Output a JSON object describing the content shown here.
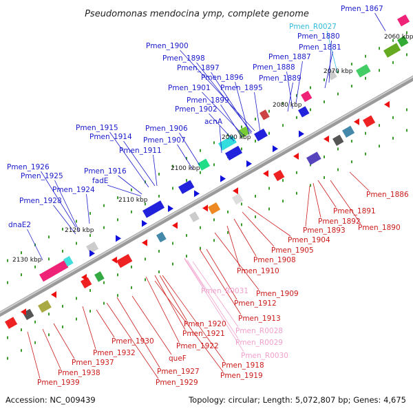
{
  "title": "Pseudomonas mendocina ymp, complete genome",
  "footer": {
    "accession": "Accession: NC_009439",
    "topology": "Topology: circular; Length: 5,072,807 bp; Genes: 4,675"
  },
  "colors": {
    "plus_label": "#1a1acc",
    "minus_label": "#cc1a1a",
    "rna_plus_label": "#33bbdd",
    "rna_minus_label": "#f2a0cc",
    "backbone": "#888888",
    "tick": "#3a9a2a"
  },
  "ticks": [
    "2060 kbp",
    "2070 kbp",
    "2080 kbp",
    "2090 kbp",
    "2100 kbp",
    "2110 kbp",
    "2120 kbp",
    "2130 kbp"
  ],
  "plus_labels": [
    "Pmen_1867",
    "Pmen_R0027",
    "Pmen_1880",
    "Pmen_1881",
    "Pmen_1887",
    "Pmen_1888",
    "Pmen_1889",
    "Pmen_1900",
    "Pmen_1898",
    "Pmen_1897",
    "Pmen_1896",
    "Pmen_1895",
    "Pmen_1901",
    "Pmen_1899",
    "Pmen_1902",
    "acnA",
    "Pmen_1906",
    "Pmen_1915",
    "Pmen_1914",
    "Pmen_1907",
    "Pmen_1911",
    "Pmen_1926",
    "Pmen_1916",
    "Pmen_1925",
    "fadE",
    "Pmen_1924",
    "Pmen_1928",
    "dnaE2"
  ],
  "minus_labels": [
    "Pmen_1886",
    "Pmen_1891",
    "Pmen_1892",
    "Pmen_1890",
    "Pmen_1893",
    "Pmen_1904",
    "Pmen_1905",
    "Pmen_1908",
    "Pmen_1910",
    "Pmen_1909",
    "Pmen_R0031",
    "Pmen_1912",
    "Pmen_1913",
    "Pmen_1920",
    "Pmen_R0028",
    "Pmen_1921",
    "Pmen_R0029",
    "Pmen_1930",
    "Pmen_1922",
    "Pmen_R0030",
    "Pmen_1932",
    "queF",
    "Pmen_1918",
    "Pmen_1937",
    "Pmen_1927",
    "Pmen_1919",
    "Pmen_1938",
    "Pmen_1929",
    "Pmen_1939"
  ]
}
